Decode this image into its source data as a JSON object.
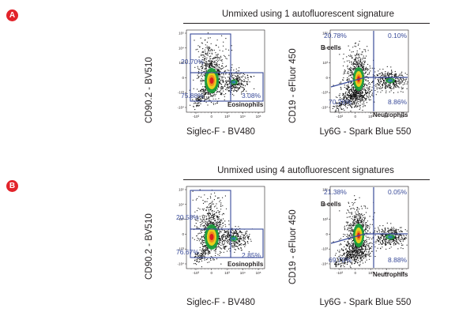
{
  "panels": [
    {
      "badge": "A",
      "title": "Unmixed using 1 autofluorescent signature",
      "plots": [
        {
          "xlabel": "Siglec-F - BV480",
          "ylabel": "CD90.2 - BV510",
          "gate_label": "Eosinophils",
          "pcts": {
            "upper_left": "20.70%",
            "lower_left": "75.88%",
            "lower_right": "3.08%"
          }
        },
        {
          "xlabel": "Ly6G - Spark Blue 550",
          "ylabel": "CD19 - eFluor 450",
          "gate_label_top": "B cells",
          "gate_label_bottom": "Neutrophils",
          "pcts": {
            "upper_left": "20.78%",
            "upper_right": "0.10%",
            "lower_left": "70.26%",
            "lower_right": "8.86%"
          }
        }
      ]
    },
    {
      "badge": "B",
      "title": "Unmixed using 4 autofluorescent signatures",
      "plots": [
        {
          "xlabel": "Siglec-F - BV480",
          "ylabel": "CD90.2 - BV510",
          "gate_label": "Eosinophils",
          "pcts": {
            "upper_left": "20.58%",
            "lower_left": "76.67%",
            "lower_right": "2.85%"
          }
        },
        {
          "xlabel": "Ly6G - Spark Blue 550",
          "ylabel": "CD19 - eFluor 450",
          "gate_label_top": "B cells",
          "gate_label_bottom": "Neutrophils",
          "pcts": {
            "upper_left": "21.38%",
            "upper_right": "0.05%",
            "lower_left": "69.70%",
            "lower_right": "8.88%"
          }
        }
      ]
    }
  ],
  "axis_ticks": {
    "y": [
      "10⁵",
      "10⁴",
      "10³",
      "0",
      "-10³",
      "-10⁴"
    ],
    "x": [
      "-10³",
      "0",
      "10³",
      "10⁴",
      "10⁵"
    ]
  },
  "colors": {
    "badge": "#e2232a",
    "gate": "#3a4c9a",
    "pct_text": "#3a4c9a",
    "dots": "#111111"
  }
}
